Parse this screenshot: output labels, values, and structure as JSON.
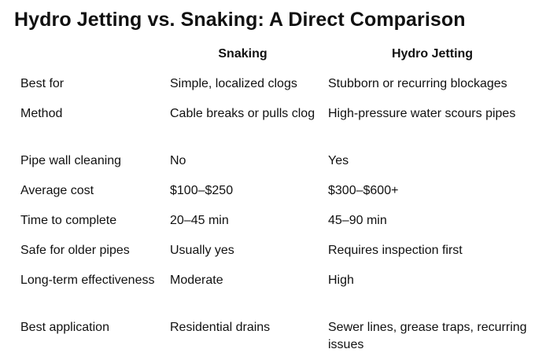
{
  "title": "Hydro Jetting vs. Snaking: A Direct Comparison",
  "table": {
    "headers": [
      "",
      "Snaking",
      "Hydro Jetting"
    ],
    "rows": [
      [
        "Best for",
        "Simple, localized clogs",
        "Stubborn or recurring blockages"
      ],
      [
        "Method",
        "Cable breaks or pulls clog",
        "High-pressure water scours pipes"
      ],
      [
        "Pipe wall cleaning",
        "No",
        "Yes"
      ],
      [
        "Average cost",
        "$100–$250",
        "$300–$600+"
      ],
      [
        "Time to complete",
        "20–45 min",
        "45–90 min"
      ],
      [
        "Safe for older pipes",
        "Usually yes",
        "Requires inspection first"
      ],
      [
        "Long-term effectiveness",
        "Moderate",
        "High"
      ],
      [
        "Best application",
        "Residential drains",
        "Sewer lines, grease traps, recurring issues"
      ]
    ]
  }
}
